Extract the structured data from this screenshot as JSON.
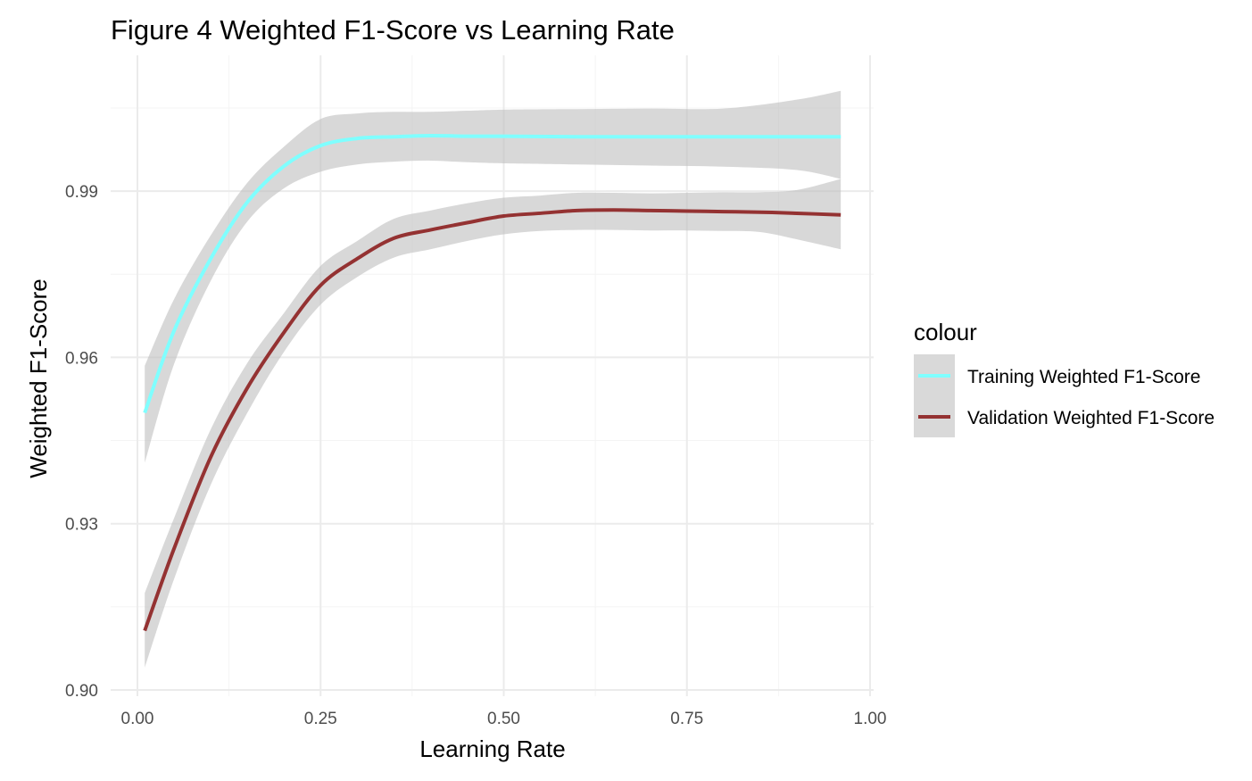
{
  "chart_data": {
    "type": "line",
    "title": "Figure 4 Weighted F1-Score vs Learning Rate",
    "xlabel": "Learning Rate",
    "ylabel": "Weighted F1-Score",
    "xlim": [
      0.0,
      1.0
    ],
    "ylim": [
      0.9,
      1.0
    ],
    "x_ticks": [
      0.0,
      0.25,
      0.5,
      0.75,
      1.0
    ],
    "x_tick_labels": [
      "0.00",
      "0.25",
      "0.50",
      "0.75",
      "1.00"
    ],
    "y_ticks": [
      0.9,
      0.93,
      0.96,
      0.99
    ],
    "y_tick_labels": [
      "0.90",
      "0.93",
      "0.96",
      "0.99"
    ],
    "grid": true,
    "legend_placement": "right",
    "legend_title": "colour",
    "series": [
      {
        "name": "Training Weighted F1-Score",
        "color": "#7fffff",
        "x": [
          0.01,
          0.05,
          0.1,
          0.15,
          0.2,
          0.25,
          0.3,
          0.35,
          0.4,
          0.45,
          0.5,
          0.6,
          0.7,
          0.8,
          0.9,
          0.96
        ],
        "y": [
          0.95,
          0.9648,
          0.9778,
          0.988,
          0.9945,
          0.9982,
          0.9995,
          0.9998,
          1.0,
          0.9999,
          0.9999,
          0.9998,
          0.9998,
          0.9998,
          0.9998,
          0.9998
        ],
        "ci_lower": [
          0.941,
          0.9588,
          0.9738,
          0.9845,
          0.9905,
          0.9935,
          0.9948,
          0.9953,
          0.9955,
          0.9952,
          0.995,
          0.9948,
          0.9946,
          0.9944,
          0.9938,
          0.9922
        ],
        "ci_upper": [
          0.9585,
          0.9705,
          0.982,
          0.9915,
          0.998,
          1.003,
          1.004,
          1.0043,
          1.0043,
          1.0045,
          1.0047,
          1.0048,
          1.0049,
          1.0049,
          1.0065,
          1.0081
        ]
      },
      {
        "name": "Validation Weighted F1-Score",
        "color": "#943232",
        "x": [
          0.01,
          0.05,
          0.1,
          0.15,
          0.2,
          0.25,
          0.3,
          0.35,
          0.4,
          0.45,
          0.5,
          0.55,
          0.6,
          0.65,
          0.7,
          0.75,
          0.8,
          0.85,
          0.9,
          0.96
        ],
        "y": [
          0.9107,
          0.9255,
          0.942,
          0.9545,
          0.9645,
          0.973,
          0.9778,
          0.9815,
          0.983,
          0.9843,
          0.9855,
          0.986,
          0.9865,
          0.9866,
          0.9865,
          0.9864,
          0.9863,
          0.9862,
          0.986,
          0.9857
        ],
        "ci_lower": [
          0.904,
          0.92,
          0.937,
          0.95,
          0.961,
          0.9695,
          0.9745,
          0.978,
          0.9795,
          0.981,
          0.9822,
          0.9828,
          0.983,
          0.983,
          0.9829,
          0.9829,
          0.9828,
          0.9826,
          0.9813,
          0.9795
        ],
        "ci_upper": [
          0.9175,
          0.931,
          0.947,
          0.959,
          0.968,
          0.9765,
          0.981,
          0.985,
          0.9865,
          0.9878,
          0.9888,
          0.9892,
          0.9897,
          0.9897,
          0.9896,
          0.9897,
          0.9898,
          0.9898,
          0.9902,
          0.9922
        ]
      }
    ]
  },
  "colors": {
    "ribbon": "#bebebe",
    "grid_major": "#ebebeb",
    "grid_minor": "#f4f4f4",
    "tick_text": "#4d4d4d",
    "legend_key_bg": "#d9d9d9"
  }
}
